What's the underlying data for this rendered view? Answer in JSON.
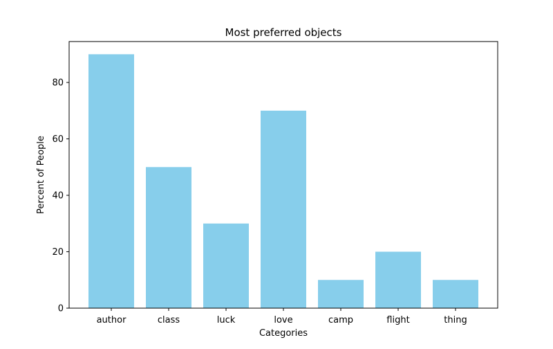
{
  "chart_data": {
    "type": "bar",
    "title": "Most preferred objects",
    "xlabel": "Categories",
    "ylabel": "Percent of People",
    "categories": [
      "author",
      "class",
      "luck",
      "love",
      "camp",
      "flight",
      "thing"
    ],
    "values": [
      90,
      50,
      30,
      70,
      10,
      20,
      10
    ],
    "ylim": [
      0,
      94.5
    ],
    "yticks": [
      0,
      20,
      40,
      60,
      80
    ],
    "bar_color": "#87CEEB",
    "grid": false,
    "legend": "none"
  }
}
